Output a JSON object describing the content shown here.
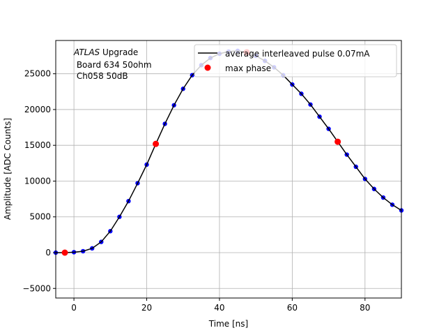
{
  "chart_data": {
    "type": "line",
    "xlabel": "Time [ns]",
    "ylabel": "Amplitude [ADC Counts]",
    "xlim": [
      -5,
      90
    ],
    "ylim": [
      -6340,
      29650
    ],
    "grid": true,
    "legend_placement": "top-right",
    "x_ticks": [
      0,
      20,
      40,
      60,
      80
    ],
    "y_ticks": [
      -5000,
      0,
      5000,
      10000,
      15000,
      20000,
      25000
    ],
    "annotation": {
      "italic": "ATLAS",
      "rest": " Upgrade",
      "line2": " Board 634 50ohm",
      "line3": " Ch058 50dB"
    },
    "series": [
      {
        "name": "average interleaved pulse 0.07mA",
        "color": "#000000",
        "marker_color": "#0000ff",
        "x": [
          -5,
          -2.5,
          0,
          2.5,
          5,
          7.5,
          10,
          12.5,
          15,
          17.5,
          20,
          22.5,
          25,
          27.5,
          30,
          32.5,
          35,
          37.5,
          40,
          42.5,
          45,
          47.5,
          50,
          52.5,
          55,
          57.5,
          60,
          62.5,
          65,
          67.5,
          70,
          72.5,
          75,
          77.5,
          80,
          82.5,
          85,
          87.5,
          90
        ],
        "y": [
          0,
          0,
          60,
          200,
          600,
          1500,
          3000,
          5000,
          7200,
          9700,
          12300,
          15200,
          18000,
          20600,
          22900,
          24800,
          26200,
          27200,
          27800,
          28100,
          28200,
          28000,
          27500,
          26800,
          25900,
          24800,
          23500,
          22200,
          20700,
          19000,
          17300,
          15500,
          13700,
          12000,
          10300,
          8900,
          7700,
          6700,
          5900
        ]
      },
      {
        "name": "max phase",
        "color": "#ff0000",
        "x": [
          -2.5,
          22.5,
          47.5,
          72.5
        ],
        "y": [
          0,
          15200,
          28000,
          15500
        ]
      }
    ]
  }
}
